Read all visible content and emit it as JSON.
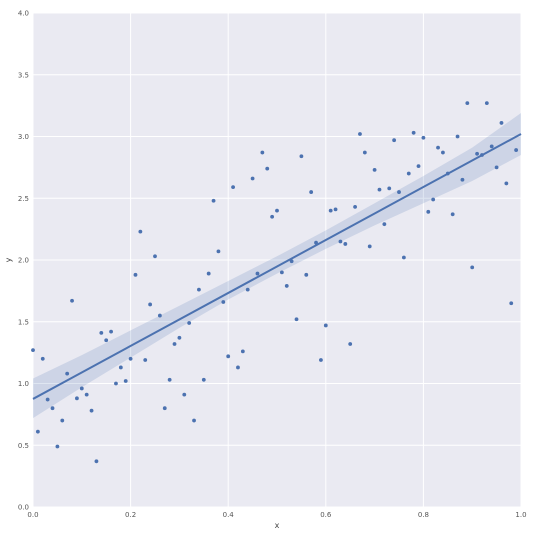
{
  "chart_data": {
    "type": "scatter",
    "title": "",
    "xlabel": "x",
    "ylabel": "y",
    "xlim": [
      0.0,
      1.0
    ],
    "ylim": [
      0.0,
      4.0
    ],
    "x_ticks": [
      "0.0",
      "0.2",
      "0.4",
      "0.6",
      "0.8",
      "1.0"
    ],
    "y_ticks": [
      "0.0",
      "0.5",
      "1.0",
      "1.5",
      "2.0",
      "2.5",
      "3.0",
      "3.5",
      "4.0"
    ],
    "grid": true,
    "background_color": "#EAEAF2",
    "point_color": "#4C72B0",
    "line_color": "#4C72B0",
    "points": [
      [
        0.0,
        1.27
      ],
      [
        0.01,
        0.61
      ],
      [
        0.02,
        1.2
      ],
      [
        0.03,
        0.87
      ],
      [
        0.04,
        0.8
      ],
      [
        0.05,
        0.49
      ],
      [
        0.06,
        0.7
      ],
      [
        0.07,
        1.08
      ],
      [
        0.08,
        1.67
      ],
      [
        0.09,
        0.88
      ],
      [
        0.1,
        0.96
      ],
      [
        0.11,
        0.91
      ],
      [
        0.12,
        0.78
      ],
      [
        0.13,
        0.37
      ],
      [
        0.14,
        1.41
      ],
      [
        0.15,
        1.35
      ],
      [
        0.16,
        1.42
      ],
      [
        0.17,
        1.0
      ],
      [
        0.18,
        1.13
      ],
      [
        0.19,
        1.02
      ],
      [
        0.2,
        1.2
      ],
      [
        0.21,
        1.88
      ],
      [
        0.22,
        2.23
      ],
      [
        0.23,
        1.19
      ],
      [
        0.24,
        1.64
      ],
      [
        0.25,
        2.03
      ],
      [
        0.26,
        1.55
      ],
      [
        0.27,
        0.8
      ],
      [
        0.28,
        1.03
      ],
      [
        0.29,
        1.32
      ],
      [
        0.3,
        1.37
      ],
      [
        0.31,
        0.91
      ],
      [
        0.32,
        1.49
      ],
      [
        0.33,
        0.7
      ],
      [
        0.34,
        1.76
      ],
      [
        0.35,
        1.03
      ],
      [
        0.36,
        1.89
      ],
      [
        0.37,
        2.48
      ],
      [
        0.38,
        2.07
      ],
      [
        0.39,
        1.66
      ],
      [
        0.4,
        1.22
      ],
      [
        0.41,
        2.59
      ],
      [
        0.42,
        1.13
      ],
      [
        0.43,
        1.26
      ],
      [
        0.44,
        1.76
      ],
      [
        0.45,
        2.66
      ],
      [
        0.46,
        1.89
      ],
      [
        0.47,
        2.87
      ],
      [
        0.48,
        2.74
      ],
      [
        0.49,
        2.35
      ],
      [
        0.5,
        2.4
      ],
      [
        0.51,
        1.9
      ],
      [
        0.52,
        1.79
      ],
      [
        0.53,
        1.99
      ],
      [
        0.54,
        1.52
      ],
      [
        0.55,
        2.84
      ],
      [
        0.56,
        1.88
      ],
      [
        0.57,
        2.55
      ],
      [
        0.58,
        2.14
      ],
      [
        0.59,
        1.19
      ],
      [
        0.6,
        1.47
      ],
      [
        0.61,
        2.4
      ],
      [
        0.62,
        2.41
      ],
      [
        0.63,
        2.15
      ],
      [
        0.64,
        2.13
      ],
      [
        0.65,
        1.32
      ],
      [
        0.66,
        2.43
      ],
      [
        0.67,
        3.02
      ],
      [
        0.68,
        2.87
      ],
      [
        0.69,
        2.11
      ],
      [
        0.7,
        2.73
      ],
      [
        0.71,
        2.57
      ],
      [
        0.72,
        2.29
      ],
      [
        0.73,
        2.58
      ],
      [
        0.74,
        2.97
      ],
      [
        0.75,
        2.55
      ],
      [
        0.76,
        2.02
      ],
      [
        0.77,
        2.7
      ],
      [
        0.78,
        3.03
      ],
      [
        0.79,
        2.76
      ],
      [
        0.8,
        2.99
      ],
      [
        0.81,
        2.39
      ],
      [
        0.82,
        2.49
      ],
      [
        0.83,
        2.91
      ],
      [
        0.84,
        2.87
      ],
      [
        0.85,
        2.7
      ],
      [
        0.86,
        2.37
      ],
      [
        0.87,
        3.0
      ],
      [
        0.88,
        2.65
      ],
      [
        0.89,
        3.27
      ],
      [
        0.9,
        1.94
      ],
      [
        0.91,
        2.86
      ],
      [
        0.92,
        2.85
      ],
      [
        0.93,
        3.27
      ],
      [
        0.94,
        2.92
      ],
      [
        0.95,
        2.75
      ],
      [
        0.96,
        3.11
      ],
      [
        0.97,
        2.62
      ],
      [
        0.98,
        1.65
      ],
      [
        0.99,
        2.89
      ]
    ],
    "regression_line": {
      "x": [
        0.0,
        1.0
      ],
      "y": [
        0.875,
        3.02
      ]
    },
    "confidence_band": {
      "x": [
        0.0,
        0.1,
        0.2,
        0.3,
        0.4,
        0.5,
        0.6,
        0.7,
        0.8,
        0.9,
        1.0
      ],
      "lower": [
        0.72,
        0.97,
        1.21,
        1.45,
        1.68,
        1.89,
        2.09,
        2.28,
        2.46,
        2.64,
        2.85
      ],
      "upper": [
        1.04,
        1.23,
        1.43,
        1.63,
        1.83,
        2.03,
        2.24,
        2.46,
        2.68,
        2.91,
        3.19
      ]
    }
  }
}
